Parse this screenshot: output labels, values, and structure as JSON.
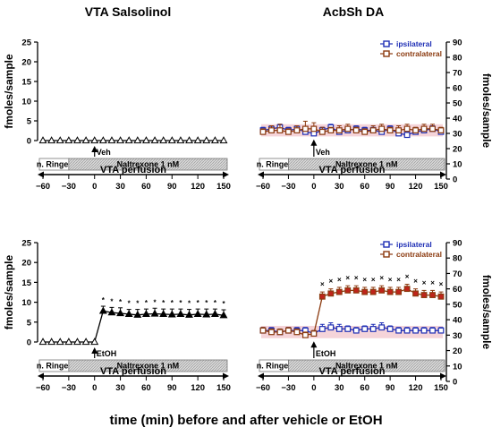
{
  "figure": {
    "xlabel": "time (min) before and after vehicle or EtOH"
  },
  "columns": {
    "left_title": "VTA Salsolinol",
    "right_title": "AcbSh DA"
  },
  "colors": {
    "ipsilateral": "#1f2fb5",
    "contralateral": "#8b3a0f",
    "contralateral_fill": "#c0231b",
    "band": "#f3c9d0"
  },
  "chart_data": [
    {
      "type": "line",
      "panel": "top-left",
      "ylabel": "fmoles/sample",
      "ylim": [
        0,
        25
      ],
      "yticks": [
        0,
        5,
        10,
        15,
        20,
        25
      ],
      "xlim": [
        -60,
        150
      ],
      "xticks": [
        -60,
        -30,
        0,
        30,
        60,
        90,
        120,
        150
      ],
      "event_label": "Veh",
      "bar_labels": {
        "ringer": "n. Ringer",
        "drug": "Naltrexone 1 nM",
        "perfusion": "VTA perfusion"
      },
      "series": [
        {
          "marker": "triangle-open",
          "x": [
            -60,
            -50,
            -40,
            -30,
            -20,
            -10,
            0,
            10,
            20,
            30,
            40,
            50,
            60,
            70,
            80,
            90,
            100,
            110,
            120,
            130,
            140,
            150
          ],
          "y": [
            0,
            0,
            0,
            0,
            0,
            0,
            0,
            0,
            0,
            0,
            0,
            0,
            0,
            0,
            0,
            0,
            0,
            0,
            0,
            0,
            0,
            0
          ],
          "err": [
            0,
            0,
            0,
            0,
            0,
            0,
            0,
            0,
            0,
            0,
            0,
            0,
            0,
            0,
            0,
            0,
            0,
            0,
            0,
            0,
            0,
            0
          ]
        }
      ]
    },
    {
      "type": "line",
      "panel": "top-right",
      "ylabel": "fmoles/sample",
      "ylim": [
        0,
        90
      ],
      "yticks": [
        0,
        10,
        20,
        30,
        40,
        50,
        60,
        70,
        80,
        90
      ],
      "xlim": [
        -60,
        150
      ],
      "xticks": [
        -60,
        -30,
        0,
        30,
        60,
        90,
        120,
        150
      ],
      "event_label": "Veh",
      "bar_labels": {
        "ringer": "n. Ringer",
        "drug": "Naltrexone 1 nM",
        "perfusion": "VTA perfusion"
      },
      "legend": [
        "ipsilateral",
        "contralateral"
      ],
      "series": [
        {
          "name": "ipsilateral",
          "x": [
            -60,
            -50,
            -40,
            -30,
            -20,
            -10,
            0,
            10,
            20,
            30,
            40,
            50,
            60,
            70,
            80,
            90,
            100,
            110,
            120,
            130,
            140,
            150
          ],
          "y": [
            32,
            33,
            34,
            32,
            33,
            31,
            30,
            32,
            34,
            31,
            32,
            33,
            32,
            32,
            31,
            33,
            30,
            29,
            31,
            32,
            33,
            31
          ],
          "err": [
            2,
            2,
            2,
            2,
            2,
            3,
            3,
            2,
            2,
            2,
            2,
            2,
            2,
            2,
            2,
            2,
            2,
            2,
            2,
            2,
            2,
            2
          ]
        },
        {
          "name": "contralateral",
          "x": [
            -60,
            -50,
            -40,
            -30,
            -20,
            -10,
            0,
            10,
            20,
            30,
            40,
            50,
            60,
            70,
            80,
            90,
            100,
            110,
            120,
            130,
            140,
            150
          ],
          "y": [
            31,
            32,
            32,
            31,
            32,
            33,
            33,
            31,
            32,
            32,
            33,
            32,
            31,
            32,
            33,
            32,
            32,
            33,
            32,
            33,
            33,
            32
          ],
          "err": [
            2,
            3,
            4,
            2,
            3,
            5,
            4,
            3,
            2,
            3,
            3,
            2,
            2,
            3,
            3,
            2,
            3,
            3,
            2,
            3,
            3,
            2
          ]
        }
      ]
    },
    {
      "type": "line",
      "panel": "bottom-left",
      "ylabel": "fmoles/sample",
      "ylim": [
        0,
        25
      ],
      "yticks": [
        0,
        5,
        10,
        15,
        20,
        25
      ],
      "xlim": [
        -60,
        150
      ],
      "xticks": [
        -60,
        -30,
        0,
        30,
        60,
        90,
        120,
        150
      ],
      "event_label": "EtOH",
      "bar_labels": {
        "ringer": "n. Ringer",
        "drug": "Naltrexone 1 nM",
        "perfusion": "VTA perfusion"
      },
      "series": [
        {
          "marker": "triangle-filled",
          "x": [
            -60,
            -50,
            -40,
            -30,
            -20,
            -10,
            0,
            10,
            20,
            30,
            40,
            50,
            60,
            70,
            80,
            90,
            100,
            110,
            120,
            130,
            140,
            150
          ],
          "y": [
            0,
            0,
            0,
            0,
            0,
            0,
            0,
            7.8,
            7.4,
            7.2,
            7.0,
            6.8,
            7.0,
            7.1,
            7.0,
            6.9,
            7.0,
            6.8,
            7.0,
            6.9,
            7.0,
            6.7
          ],
          "err": [
            0,
            0,
            0,
            0,
            0,
            0,
            0,
            1.2,
            1.3,
            1.4,
            1.2,
            1.4,
            1.3,
            1.4,
            1.3,
            1.4,
            1.3,
            1.4,
            1.3,
            1.4,
            1.3,
            1.4
          ],
          "sig": [
            "",
            "",
            "",
            "",
            "",
            "",
            "",
            "*",
            "*",
            "*",
            "*",
            "*",
            "*",
            "*",
            "*",
            "*",
            "*",
            "*",
            "*",
            "*",
            "*",
            "*"
          ]
        }
      ]
    },
    {
      "type": "line",
      "panel": "bottom-right",
      "ylabel": "fmoles/sample",
      "ylim": [
        0,
        90
      ],
      "yticks": [
        0,
        10,
        20,
        30,
        40,
        50,
        60,
        70,
        80,
        90
      ],
      "xlim": [
        -60,
        150
      ],
      "xticks": [
        -60,
        -30,
        0,
        30,
        60,
        90,
        120,
        150
      ],
      "event_label": "EtOH",
      "bar_labels": {
        "ringer": "n. Ringer",
        "drug": "Naltrexone 1 nM",
        "perfusion": "VTA perfusion"
      },
      "legend": [
        "ipsilateral",
        "contralateral"
      ],
      "series": [
        {
          "name": "ipsilateral",
          "x": [
            -60,
            -50,
            -40,
            -30,
            -20,
            -10,
            0,
            10,
            20,
            30,
            40,
            50,
            60,
            70,
            80,
            90,
            100,
            110,
            120,
            130,
            140,
            150
          ],
          "y": [
            33,
            33,
            32,
            33,
            33,
            33,
            31,
            34,
            35,
            34,
            34,
            33,
            34,
            34,
            35,
            34,
            33,
            33,
            33,
            33,
            33,
            33
          ],
          "err": [
            2,
            2,
            2,
            2,
            2,
            2,
            2,
            3,
            3,
            3,
            2,
            2,
            2,
            3,
            3,
            2,
            2,
            2,
            2,
            2,
            2,
            2
          ]
        },
        {
          "name": "contralateral",
          "x": [
            -60,
            -50,
            -40,
            -30,
            -20,
            -10,
            0,
            10,
            20,
            30,
            40,
            50,
            60,
            70,
            80,
            90,
            100,
            110,
            120,
            130,
            140,
            150
          ],
          "y": [
            33,
            32,
            32,
            33,
            32,
            30,
            31,
            55,
            57,
            58,
            59,
            59,
            58,
            58,
            59,
            58,
            58,
            60,
            57,
            56,
            56,
            55
          ],
          "err": [
            2,
            2,
            2,
            2,
            2,
            2,
            2,
            3,
            3,
            3,
            3,
            3,
            3,
            3,
            3,
            3,
            3,
            3,
            3,
            3,
            3,
            3
          ],
          "sig": [
            "",
            "",
            "",
            "",
            "",
            "",
            "",
            "x",
            "x",
            "x",
            "x",
            "x",
            "x",
            "x",
            "x",
            "x",
            "x",
            "x",
            "x",
            "x",
            "x",
            "x"
          ]
        }
      ]
    }
  ]
}
